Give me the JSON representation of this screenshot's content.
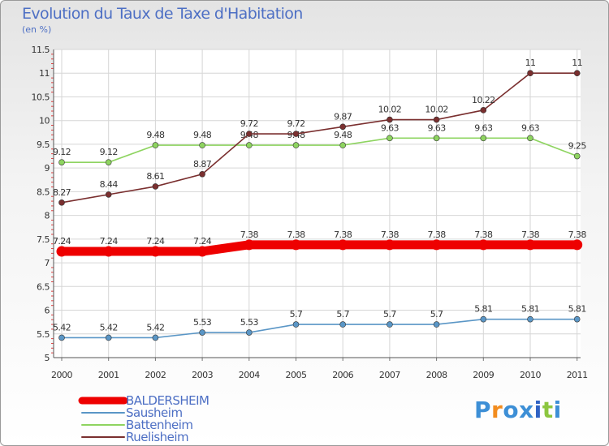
{
  "title": "Evolution du Taux de Taxe d'Habitation",
  "subtitle": "(en %)",
  "logo": {
    "text": "Proxiti",
    "colors": [
      "#3d8fd6",
      "#f28c1e",
      "#3d8fd6",
      "#3d8fd6",
      "#2f62c4",
      "#8cc63f",
      "#3d8fd6"
    ]
  },
  "chart_data": {
    "type": "line",
    "x": [
      2000,
      2001,
      2002,
      2003,
      2004,
      2005,
      2006,
      2007,
      2008,
      2009,
      2010,
      2011
    ],
    "ylim": [
      5,
      11.5
    ],
    "yticks": [
      "5",
      "5.5",
      "6",
      "6.5",
      "7",
      "7.5",
      "8",
      "8.5",
      "9",
      "9.5",
      "10",
      "10.5",
      "11",
      "11.5"
    ],
    "grid": true,
    "legend_position": "bottom-left",
    "series": [
      {
        "name": "BALDERSHEIM",
        "color": "#ee0000",
        "emphasis": true,
        "values": [
          7.24,
          7.24,
          7.24,
          7.24,
          7.38,
          7.38,
          7.38,
          7.38,
          7.38,
          7.38,
          7.38,
          7.38
        ],
        "labels": [
          "7.24",
          "7.24",
          "7.24",
          "7.24",
          "7.38",
          "7.38",
          "7.38",
          "7.38",
          "7.38",
          "7.38",
          "7.38",
          "7.38"
        ]
      },
      {
        "name": "Sausheim",
        "color": "#5a96c6",
        "values": [
          5.42,
          5.42,
          5.42,
          5.53,
          5.53,
          5.7,
          5.7,
          5.7,
          5.7,
          5.81,
          5.81,
          5.81
        ],
        "labels": [
          "5.42",
          "5.42",
          "5.42",
          "5.53",
          "5.53",
          "5.7",
          "5.7",
          "5.7",
          "5.7",
          "5.81",
          "5.81",
          "5.81"
        ]
      },
      {
        "name": "Battenheim",
        "color": "#8ed460",
        "values": [
          9.12,
          9.12,
          9.48,
          9.48,
          9.48,
          9.48,
          9.48,
          9.63,
          9.63,
          9.63,
          9.63,
          9.25
        ],
        "labels": [
          "9.12",
          "9.12",
          "9.48",
          "9.48",
          "9.48",
          "9.48",
          "9.48",
          "9.63",
          "9.63",
          "9.63",
          "9.63",
          "9.25"
        ]
      },
      {
        "name": "Ruelisheim",
        "color": "#7a2f2f",
        "values": [
          8.27,
          8.44,
          8.61,
          8.87,
          9.72,
          9.72,
          9.87,
          10.02,
          10.02,
          10.22,
          11,
          11
        ],
        "labels": [
          "8.27",
          "8.44",
          "8.61",
          "8.87",
          "9.72",
          "9.72",
          "9.87",
          "10.02",
          "10.02",
          "10.22",
          "11",
          "11"
        ]
      }
    ]
  }
}
